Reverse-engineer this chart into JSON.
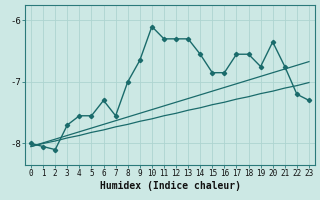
{
  "xlabel": "Humidex (Indice chaleur)",
  "ylabel": "",
  "bg_color": "#cce8e4",
  "line_color": "#1a6b6b",
  "grid_color": "#aed4d0",
  "x_data": [
    0,
    1,
    2,
    3,
    4,
    5,
    6,
    7,
    8,
    9,
    10,
    11,
    12,
    13,
    14,
    15,
    16,
    17,
    18,
    19,
    20,
    21,
    22,
    23
  ],
  "y_main": [
    -8.0,
    -8.05,
    -8.1,
    -7.7,
    -7.55,
    -7.55,
    -7.3,
    -7.55,
    -7.0,
    -6.65,
    -6.1,
    -6.3,
    -6.3,
    -6.3,
    -6.55,
    -6.85,
    -6.85,
    -6.55,
    -6.55,
    -6.75,
    -6.35,
    -6.75,
    -7.2,
    -7.3
  ],
  "y_reg1": [
    -8.05,
    -7.99,
    -7.93,
    -7.87,
    -7.81,
    -7.75,
    -7.69,
    -7.63,
    -7.57,
    -7.51,
    -7.45,
    -7.39,
    -7.33,
    -7.27,
    -7.21,
    -7.15,
    -7.09,
    -7.03,
    -6.97,
    -6.91,
    -6.85,
    -6.79,
    -6.73,
    -6.67
  ],
  "y_reg2": [
    -8.05,
    -8.0,
    -7.96,
    -7.91,
    -7.87,
    -7.82,
    -7.78,
    -7.73,
    -7.69,
    -7.64,
    -7.6,
    -7.55,
    -7.51,
    -7.46,
    -7.42,
    -7.37,
    -7.33,
    -7.28,
    -7.24,
    -7.19,
    -7.15,
    -7.1,
    -7.06,
    -7.01
  ],
  "yticks": [
    -8,
    -7,
    -6
  ],
  "ylim": [
    -8.35,
    -5.75
  ],
  "xlim": [
    -0.5,
    23.5
  ],
  "xticks": [
    0,
    1,
    2,
    3,
    4,
    5,
    6,
    7,
    8,
    9,
    10,
    11,
    12,
    13,
    14,
    15,
    16,
    17,
    18,
    19,
    20,
    21,
    22,
    23
  ],
  "tick_fontsize": 5.5,
  "xlabel_fontsize": 7.0
}
